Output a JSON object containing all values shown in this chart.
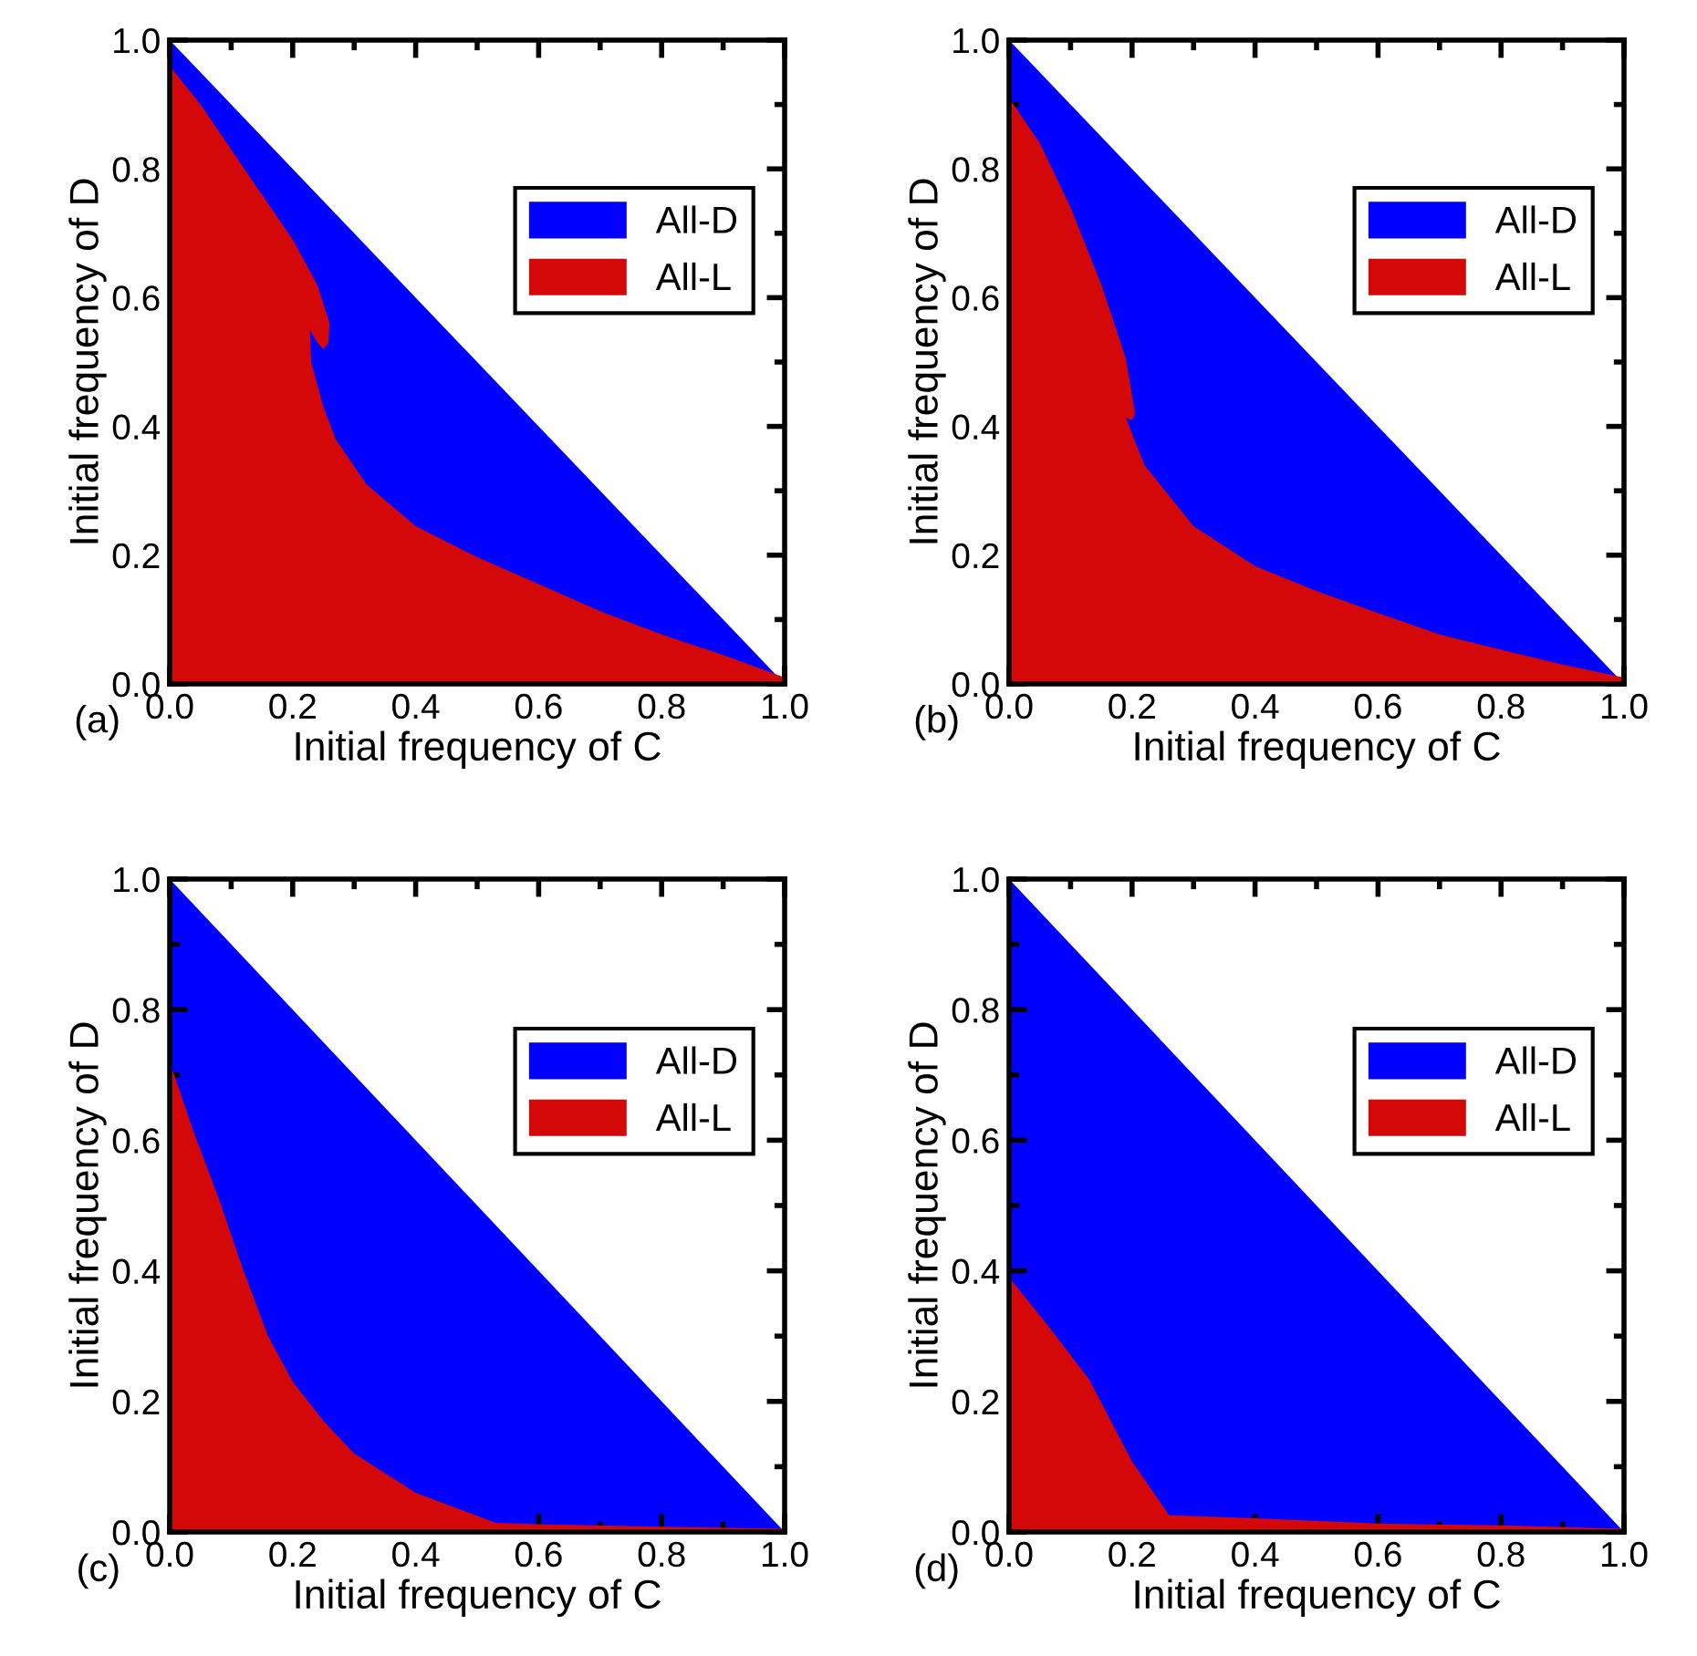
{
  "chart_data": [
    {
      "type": "area",
      "xlabel": "Initial frequency of C",
      "ylabel": "Initial frequency of D",
      "annotations": [
        "(a)"
      ],
      "xlim": [
        0,
        1
      ],
      "ylim": [
        0,
        1
      ],
      "xticks": [
        {
          "value": 0,
          "label": "0.0"
        },
        {
          "value": 0.2,
          "label": "0.2"
        },
        {
          "value": 0.4,
          "label": "0.4"
        },
        {
          "value": 0.6,
          "label": "0.6"
        },
        {
          "value": 0.8,
          "label": "0.8"
        },
        {
          "value": 1,
          "label": "1.0"
        }
      ],
      "yticks": [
        {
          "value": 0,
          "label": "0.0"
        },
        {
          "value": 0.2,
          "label": "0.2"
        },
        {
          "value": 0.4,
          "label": "0.4"
        },
        {
          "value": 0.6,
          "label": "0.6"
        },
        {
          "value": 0.8,
          "label": "0.8"
        },
        {
          "value": 1,
          "label": "1.0"
        }
      ],
      "legend": "top right",
      "series": [
        {
          "name": "All-D",
          "color": "#0000ff",
          "x": [
            0,
            1
          ],
          "values": [
            1,
            0
          ]
        },
        {
          "name": "All-L",
          "color": "#d40808",
          "x": [
            0,
            0.05,
            0.1,
            0.15,
            0.2,
            0.24,
            0.26,
            0.258,
            0.25,
            0.24,
            0.228,
            0.23,
            0.25,
            0.27,
            0.32,
            0.4,
            0.5,
            0.6,
            0.7,
            0.8,
            0.9,
            1
          ],
          "values": [
            0.96,
            0.9,
            0.83,
            0.76,
            0.69,
            0.62,
            0.56,
            0.53,
            0.52,
            0.53,
            0.55,
            0.5,
            0.43,
            0.38,
            0.31,
            0.245,
            0.197,
            0.155,
            0.113,
            0.077,
            0.045,
            0.01
          ]
        }
      ]
    },
    {
      "type": "area",
      "xlabel": "Initial frequency of C",
      "ylabel": "Initial frequency of D",
      "annotations": [
        "(b)"
      ],
      "xlim": [
        0,
        1
      ],
      "ylim": [
        0,
        1
      ],
      "xticks": [
        {
          "value": 0,
          "label": "0.0"
        },
        {
          "value": 0.2,
          "label": "0.2"
        },
        {
          "value": 0.4,
          "label": "0.4"
        },
        {
          "value": 0.6,
          "label": "0.6"
        },
        {
          "value": 0.8,
          "label": "0.8"
        },
        {
          "value": 1,
          "label": "1.0"
        }
      ],
      "yticks": [
        {
          "value": 0,
          "label": "0.0"
        },
        {
          "value": 0.2,
          "label": "0.2"
        },
        {
          "value": 0.4,
          "label": "0.4"
        },
        {
          "value": 0.6,
          "label": "0.6"
        },
        {
          "value": 0.8,
          "label": "0.8"
        },
        {
          "value": 1,
          "label": "1.0"
        }
      ],
      "legend": "top right",
      "series": [
        {
          "name": "All-D",
          "color": "#0000ff",
          "x": [
            0,
            1
          ],
          "values": [
            1,
            0
          ]
        },
        {
          "name": "All-L",
          "color": "#d40808",
          "x": [
            0,
            0.05,
            0.1,
            0.15,
            0.19,
            0.205,
            0.2,
            0.19,
            0.22,
            0.3,
            0.4,
            0.5,
            0.6,
            0.7,
            0.8,
            0.9,
            1
          ],
          "values": [
            0.91,
            0.84,
            0.74,
            0.62,
            0.505,
            0.42,
            0.41,
            0.413,
            0.34,
            0.245,
            0.183,
            0.144,
            0.11,
            0.077,
            0.053,
            0.03,
            0.01
          ]
        }
      ]
    },
    {
      "type": "area",
      "xlabel": "Initial frequency of C",
      "ylabel": "Initial frequency of D",
      "annotations": [
        "(c)"
      ],
      "xlim": [
        0,
        1
      ],
      "ylim": [
        0,
        1
      ],
      "xticks": [
        {
          "value": 0,
          "label": "0.0"
        },
        {
          "value": 0.2,
          "label": "0.2"
        },
        {
          "value": 0.4,
          "label": "0.4"
        },
        {
          "value": 0.6,
          "label": "0.6"
        },
        {
          "value": 0.8,
          "label": "0.8"
        },
        {
          "value": 1,
          "label": "1.0"
        }
      ],
      "yticks": [
        {
          "value": 0,
          "label": "0.0"
        },
        {
          "value": 0.2,
          "label": "0.2"
        },
        {
          "value": 0.4,
          "label": "0.4"
        },
        {
          "value": 0.6,
          "label": "0.6"
        },
        {
          "value": 0.8,
          "label": "0.8"
        },
        {
          "value": 1,
          "label": "1.0"
        }
      ],
      "legend": "top right",
      "series": [
        {
          "name": "All-D",
          "color": "#0000ff",
          "x": [
            0,
            1
          ],
          "values": [
            1,
            0
          ]
        },
        {
          "name": "All-L",
          "color": "#d40808",
          "x": [
            0,
            0.04,
            0.08,
            0.12,
            0.16,
            0.2,
            0.25,
            0.3,
            0.4,
            0.53,
            0.6,
            0.8,
            1
          ],
          "values": [
            0.72,
            0.61,
            0.51,
            0.4,
            0.3,
            0.23,
            0.17,
            0.12,
            0.06,
            0.014,
            0.012,
            0.008,
            0.005
          ]
        }
      ]
    },
    {
      "type": "area",
      "xlabel": "Initial frequency of C",
      "ylabel": "Initial frequency of D",
      "annotations": [
        "(d)"
      ],
      "xlim": [
        0,
        1
      ],
      "ylim": [
        0,
        1
      ],
      "xticks": [
        {
          "value": 0,
          "label": "0.0"
        },
        {
          "value": 0.2,
          "label": "0.2"
        },
        {
          "value": 0.4,
          "label": "0.4"
        },
        {
          "value": 0.6,
          "label": "0.6"
        },
        {
          "value": 0.8,
          "label": "0.8"
        },
        {
          "value": 1,
          "label": "1.0"
        }
      ],
      "yticks": [
        {
          "value": 0,
          "label": "0.0"
        },
        {
          "value": 0.2,
          "label": "0.2"
        },
        {
          "value": 0.4,
          "label": "0.4"
        },
        {
          "value": 0.6,
          "label": "0.6"
        },
        {
          "value": 0.8,
          "label": "0.8"
        },
        {
          "value": 1,
          "label": "1.0"
        }
      ],
      "legend": "top right",
      "series": [
        {
          "name": "All-D",
          "color": "#0000ff",
          "x": [
            0,
            1
          ],
          "values": [
            1,
            0
          ]
        },
        {
          "name": "All-L",
          "color": "#d40808",
          "x": [
            0,
            0.06,
            0.13,
            0.2,
            0.26,
            0.4,
            0.6,
            0.8,
            1
          ],
          "values": [
            0.39,
            0.32,
            0.234,
            0.108,
            0.026,
            0.021,
            0.013,
            0.01,
            0.005
          ]
        }
      ]
    }
  ]
}
